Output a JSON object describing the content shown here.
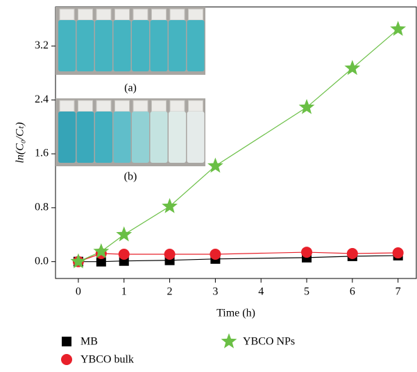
{
  "chart_data": {
    "type": "line",
    "x_label": "Time (h)",
    "y_label": "ln(C₀/Cₜ)",
    "inset_labels": [
      "(a)",
      "(b)"
    ],
    "x": [
      0,
      0.5,
      1,
      2,
      3,
      5,
      6,
      7
    ],
    "series": [
      {
        "name": "MB",
        "color": "#000000",
        "marker": "square",
        "values": [
          0,
          0.0,
          0.01,
          0.02,
          0.04,
          0.06,
          0.08,
          0.09
        ]
      },
      {
        "name": "YBCO bulk",
        "color": "#e8202a",
        "marker": "circle",
        "values": [
          0,
          0.12,
          0.11,
          0.11,
          0.11,
          0.14,
          0.12,
          0.13
        ]
      },
      {
        "name": "YBCO NPs",
        "color": "#6abf45",
        "marker": "star",
        "values": [
          0,
          0.15,
          0.4,
          0.82,
          1.42,
          2.29,
          2.87,
          3.45
        ]
      }
    ],
    "xlim": [
      -0.5,
      7.4
    ],
    "xticks": [
      0,
      1,
      2,
      3,
      4,
      5,
      6,
      7
    ],
    "ylim": [
      -0.25,
      3.78
    ],
    "yticks": [
      {
        "value": 0,
        "label": "0.0"
      },
      0.8,
      1.6,
      2.4,
      3.2
    ]
  }
}
